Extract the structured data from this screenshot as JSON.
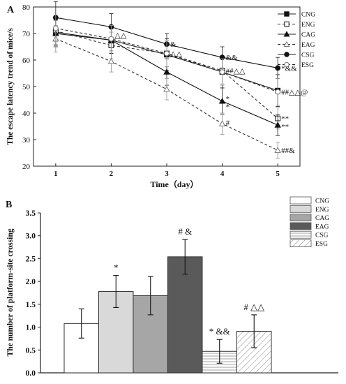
{
  "panels": {
    "a_label": "A",
    "b_label": "B"
  },
  "chart_data": [
    {
      "type": "line",
      "panel": "A",
      "xlabel": "Time（day）",
      "ylabel": "The escape latency trend of mice/s",
      "x": [
        1,
        2,
        3,
        4,
        5
      ],
      "xlim": [
        0.6,
        5.4
      ],
      "ylim": [
        20,
        80
      ],
      "xticks": [
        1,
        2,
        3,
        4,
        5
      ],
      "yticks": [
        20,
        30,
        40,
        50,
        60,
        70,
        80
      ],
      "legend_position": "top-right",
      "series": [
        {
          "name": "CNG",
          "values": [
            70.5,
            67.5,
            62,
            55.5,
            48.5
          ],
          "errors": [
            5,
            5,
            6,
            6,
            6
          ],
          "marker": "square-filled",
          "dashed": false
        },
        {
          "name": "ENG",
          "values": [
            71,
            65.5,
            62.5,
            56,
            38
          ],
          "errors": [
            5,
            5,
            5,
            5,
            4
          ],
          "marker": "square-open",
          "dashed": true
        },
        {
          "name": "CAG",
          "values": [
            70,
            67.5,
            55.5,
            44.5,
            35.5
          ],
          "errors": [
            5,
            5,
            5,
            5,
            4
          ],
          "marker": "triangle-filled",
          "dashed": false
        },
        {
          "name": "EAG",
          "values": [
            68,
            59.5,
            49,
            36,
            26
          ],
          "errors": [
            5,
            4,
            4,
            4,
            3
          ],
          "marker": "triangle-open",
          "dashed": true
        },
        {
          "name": "CSG",
          "values": [
            76,
            72.5,
            66,
            61,
            57
          ],
          "errors": [
            6,
            5,
            4,
            4,
            4
          ],
          "marker": "circle-filled",
          "dashed": false
        },
        {
          "name": "ESG",
          "values": [
            72,
            68,
            62.5,
            55.5,
            48
          ],
          "errors": [
            5,
            5,
            5,
            5,
            5
          ],
          "marker": "circle-open",
          "dashed": true
        }
      ],
      "annotations": [
        {
          "x": 2,
          "y": 69.5,
          "text": "△△"
        },
        {
          "x": 3,
          "y": 66,
          "text": "&"
        },
        {
          "x": 3,
          "y": 62.5,
          "text": "△△"
        },
        {
          "x": 4,
          "y": 61,
          "text": "&&"
        },
        {
          "x": 4,
          "y": 56,
          "text": "##△△"
        },
        {
          "x": 4,
          "y": 45.5,
          "text": "*"
        },
        {
          "x": 4,
          "y": 42.5,
          "text": "*"
        },
        {
          "x": 4,
          "y": 36.5,
          "text": "#"
        },
        {
          "x": 5,
          "y": 57,
          "text": "*&&"
        },
        {
          "x": 5,
          "y": 48,
          "text": "##△△@"
        },
        {
          "x": 5,
          "y": 38,
          "text": "**"
        },
        {
          "x": 5,
          "y": 35,
          "text": "**"
        },
        {
          "x": 5,
          "y": 26,
          "text": "##&"
        }
      ]
    },
    {
      "type": "bar",
      "panel": "B",
      "xlabel": "",
      "ylabel": "The number of platform-site crossing",
      "categories": [
        "CNG",
        "ENG",
        "CAG",
        "EAG",
        "CSG",
        "ESG"
      ],
      "values": [
        1.08,
        1.78,
        1.69,
        2.54,
        0.47,
        0.91
      ],
      "errors": [
        0.32,
        0.35,
        0.42,
        0.38,
        0.26,
        0.36
      ],
      "labels": [
        "",
        "*",
        "",
        "# &",
        "* &&",
        "# △△"
      ],
      "fills": [
        "#ffffff",
        "#d9d9d9",
        "#a6a6a6",
        "#5a5a5a",
        "hatch-horizontal",
        "hatch-diagonal"
      ],
      "ylim": [
        0,
        3.5
      ],
      "yticks": [
        0.0,
        0.5,
        1.0,
        1.5,
        2.0,
        2.5,
        3.0,
        3.5
      ],
      "legend_position": "top-right"
    }
  ]
}
